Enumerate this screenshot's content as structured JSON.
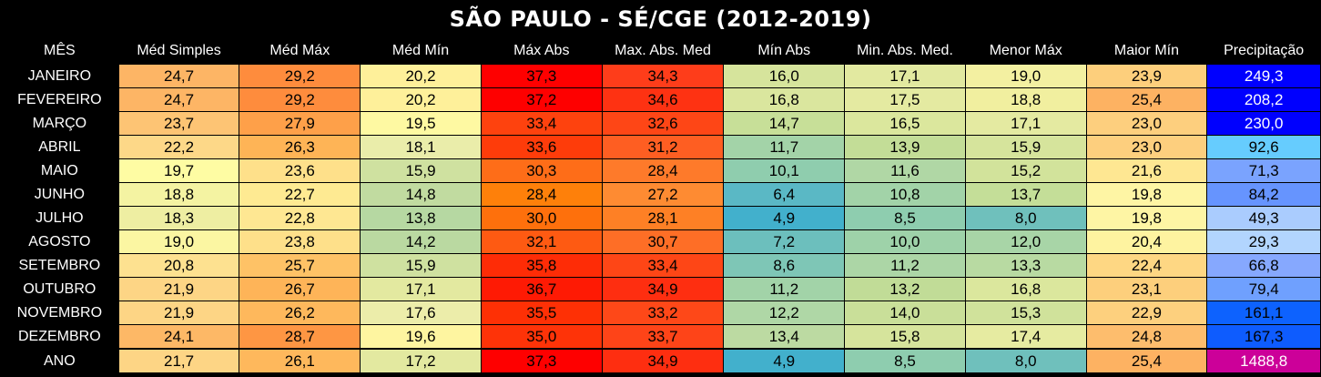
{
  "title": "SÃO PAULO - SÉ/CGE (2012-2019)",
  "chart_data": {
    "type": "table",
    "title": "SÃO PAULO - SÉ/CGE (2012-2019)",
    "columns": [
      "MÊS",
      "Méd Simples",
      "Méd Máx",
      "Méd Mín",
      "Máx Abs",
      "Max. Abs. Med",
      "Mín Abs",
      "Min. Abs. Med.",
      "Menor Máx",
      "Maior Mín",
      "Precipitação"
    ],
    "rows": [
      {
        "month": "JANEIRO",
        "values": [
          "24,7",
          "29,2",
          "20,2",
          "37,3",
          "34,3",
          "16,0",
          "17,1",
          "19,0",
          "23,9",
          "249,3"
        ]
      },
      {
        "month": "FEVEREIRO",
        "values": [
          "24,7",
          "29,2",
          "20,2",
          "37,2",
          "34,6",
          "16,8",
          "17,5",
          "18,8",
          "25,4",
          "208,2"
        ]
      },
      {
        "month": "MARÇO",
        "values": [
          "23,7",
          "27,9",
          "19,5",
          "33,4",
          "32,6",
          "14,7",
          "16,5",
          "17,1",
          "23,0",
          "230,0"
        ]
      },
      {
        "month": "ABRIL",
        "values": [
          "22,2",
          "26,3",
          "18,1",
          "33,6",
          "31,2",
          "11,7",
          "13,9",
          "15,9",
          "23,0",
          "92,6"
        ]
      },
      {
        "month": "MAIO",
        "values": [
          "19,7",
          "23,6",
          "15,9",
          "30,3",
          "28,4",
          "10,1",
          "11,6",
          "15,2",
          "21,6",
          "71,3"
        ]
      },
      {
        "month": "JUNHO",
        "values": [
          "18,8",
          "22,7",
          "14,8",
          "28,4",
          "27,2",
          "6,4",
          "10,8",
          "13,7",
          "19,8",
          "84,2"
        ]
      },
      {
        "month": "JULHO",
        "values": [
          "18,3",
          "22,8",
          "13,8",
          "30,0",
          "28,1",
          "4,9",
          "8,5",
          "8,0",
          "19,8",
          "49,3"
        ]
      },
      {
        "month": "AGOSTO",
        "values": [
          "19,0",
          "23,8",
          "14,2",
          "32,1",
          "30,7",
          "7,2",
          "10,0",
          "12,0",
          "20,4",
          "29,3"
        ]
      },
      {
        "month": "SETEMBRO",
        "values": [
          "20,8",
          "25,7",
          "15,9",
          "35,8",
          "33,4",
          "8,6",
          "11,2",
          "13,3",
          "22,4",
          "66,8"
        ]
      },
      {
        "month": "OUTUBRO",
        "values": [
          "21,9",
          "26,7",
          "17,1",
          "36,7",
          "34,9",
          "11,2",
          "13,2",
          "16,8",
          "23,1",
          "79,4"
        ]
      },
      {
        "month": "NOVEMBRO",
        "values": [
          "21,9",
          "26,2",
          "17,6",
          "35,5",
          "33,2",
          "12,2",
          "14,0",
          "15,3",
          "22,9",
          "161,1"
        ]
      },
      {
        "month": "DEZEMBRO",
        "values": [
          "24,1",
          "28,7",
          "19,6",
          "35,0",
          "33,7",
          "13,4",
          "15,8",
          "17,4",
          "24,8",
          "167,3"
        ]
      },
      {
        "month": "ANO",
        "values": [
          "21,7",
          "26,1",
          "17,2",
          "37,3",
          "34,9",
          "4,9",
          "8,5",
          "8,0",
          "25,4",
          "1488,8"
        ]
      }
    ],
    "cell_colors": [
      [
        "#fdb565",
        "#fe8c3d",
        "#fef09a",
        "#fe0000",
        "#fe3d1a",
        "#d6e49c",
        "#e2e9a0",
        "#f3f0a1",
        "#fdcf7c",
        "#0000fe"
      ],
      [
        "#fdb565",
        "#fe8c3d",
        "#fef09a",
        "#fe0000",
        "#fe3212",
        "#dae69e",
        "#e4eaa1",
        "#f1ef9f",
        "#fdb262",
        "#0000fe"
      ],
      [
        "#fdc474",
        "#fea049",
        "#fef9a2",
        "#fe420e",
        "#fe4616",
        "#c7df98",
        "#dbe79d",
        "#e4eaa1",
        "#fdcf7e",
        "#0000fe"
      ],
      [
        "#fdd888",
        "#feb456",
        "#eaedaa",
        "#fe3c0a",
        "#fe5e22",
        "#a3d3a8",
        "#c3dd97",
        "#d6e49c",
        "#fdcf7e",
        "#66ccfe"
      ],
      [
        "#fefca3",
        "#fee08a",
        "#cfe1a0",
        "#fe6d18",
        "#fe7a2a",
        "#8fcdae",
        "#b0d7a5",
        "#d2e39b",
        "#fee792",
        "#7aa3fe"
      ],
      [
        "#f4f3a2",
        "#feea92",
        "#c1dba0",
        "#fe800a",
        "#fe8b32",
        "#5ab8c5",
        "#a2d3a8",
        "#c4de98",
        "#fef5a4",
        "#6694fe"
      ],
      [
        "#eeeea2",
        "#fee792",
        "#b6d8a2",
        "#fe700c",
        "#fe8025",
        "#42b0cc",
        "#8ecdaf",
        "#6fc0bc",
        "#fef5a4",
        "#aaccfe"
      ],
      [
        "#fbf6a2",
        "#fee08a",
        "#bad9a1",
        "#fe5a12",
        "#fe6e26",
        "#6cbfbd",
        "#9ed2a9",
        "#a8d5a7",
        "#fef3a0",
        "#b2d5fe"
      ],
      [
        "#fde190",
        "#fec266",
        "#cfe1a0",
        "#fe2c06",
        "#fe4616",
        "#7ec6b6",
        "#acd6a6",
        "#b8daa2",
        "#fed783",
        "#86a8fe"
      ],
      [
        "#fdd585",
        "#feb458",
        "#e3e9a0",
        "#fe1a04",
        "#fe2e10",
        "#a2d3a8",
        "#c1dc97",
        "#dbe79d",
        "#fdcf7c",
        "#6fa0fe"
      ],
      [
        "#fdd585",
        "#feb85c",
        "#ecedaa",
        "#fe3005",
        "#fe4818",
        "#afd7a6",
        "#c9df99",
        "#d0e29b",
        "#fdd07e",
        "#0d62fe"
      ],
      [
        "#fdb866",
        "#fe9643",
        "#fef5a0",
        "#fe3308",
        "#fe4418",
        "#bcdaa2",
        "#d6e49c",
        "#e6eba1",
        "#fdbd6d",
        "#0e5cfe"
      ],
      [
        "#fdd585",
        "#feb85c",
        "#e3e9a0",
        "#fe0000",
        "#fe2e10",
        "#42b0cc",
        "#8ecdaf",
        "#6fc0bc",
        "#fdb262",
        "#cc0099"
      ]
    ],
    "light_text_cells": [
      [
        0,
        9
      ],
      [
        1,
        9
      ],
      [
        2,
        9
      ],
      [
        12,
        9
      ]
    ]
  }
}
